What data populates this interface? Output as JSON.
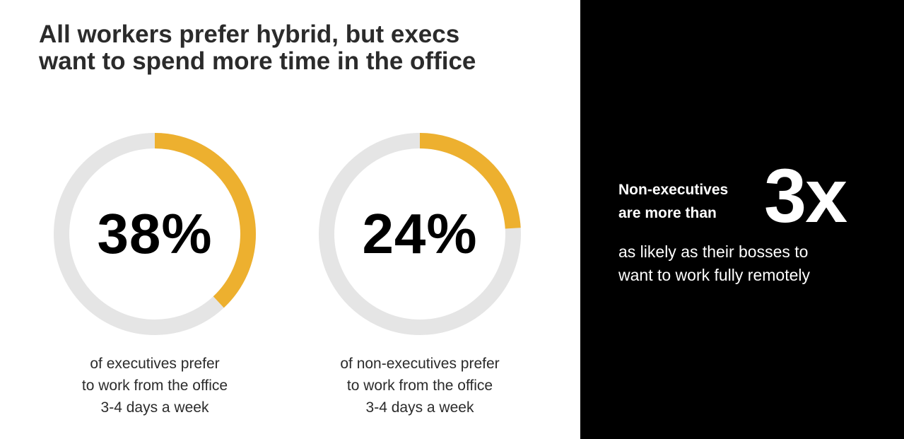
{
  "title": {
    "line1": "All workers prefer hybrid, but execs",
    "line2": "want to spend more time in the office"
  },
  "colors": {
    "accent": "#EDB02F",
    "track": "#E5E5E5",
    "text": "#2B2B2B",
    "panel_bg": "#000000",
    "panel_text": "#FFFFFF"
  },
  "chart_data": {
    "type": "donut",
    "values": [
      38,
      24
    ],
    "unit": "%",
    "items": [
      {
        "value": 38,
        "label": "38%",
        "caption": [
          "of executives prefer",
          "to work from the office",
          "3-4 days a week"
        ]
      },
      {
        "value": 24,
        "label": "24%",
        "caption": [
          "of non-executives prefer",
          "to work from the office",
          "3-4 days a week"
        ]
      }
    ]
  },
  "callout": {
    "lead_line1": "Non-executives",
    "lead_line2": "are more than",
    "big_value": "3x",
    "tail_line1": "as likely as their bosses to",
    "tail_line2": "want to work fully remotely"
  }
}
